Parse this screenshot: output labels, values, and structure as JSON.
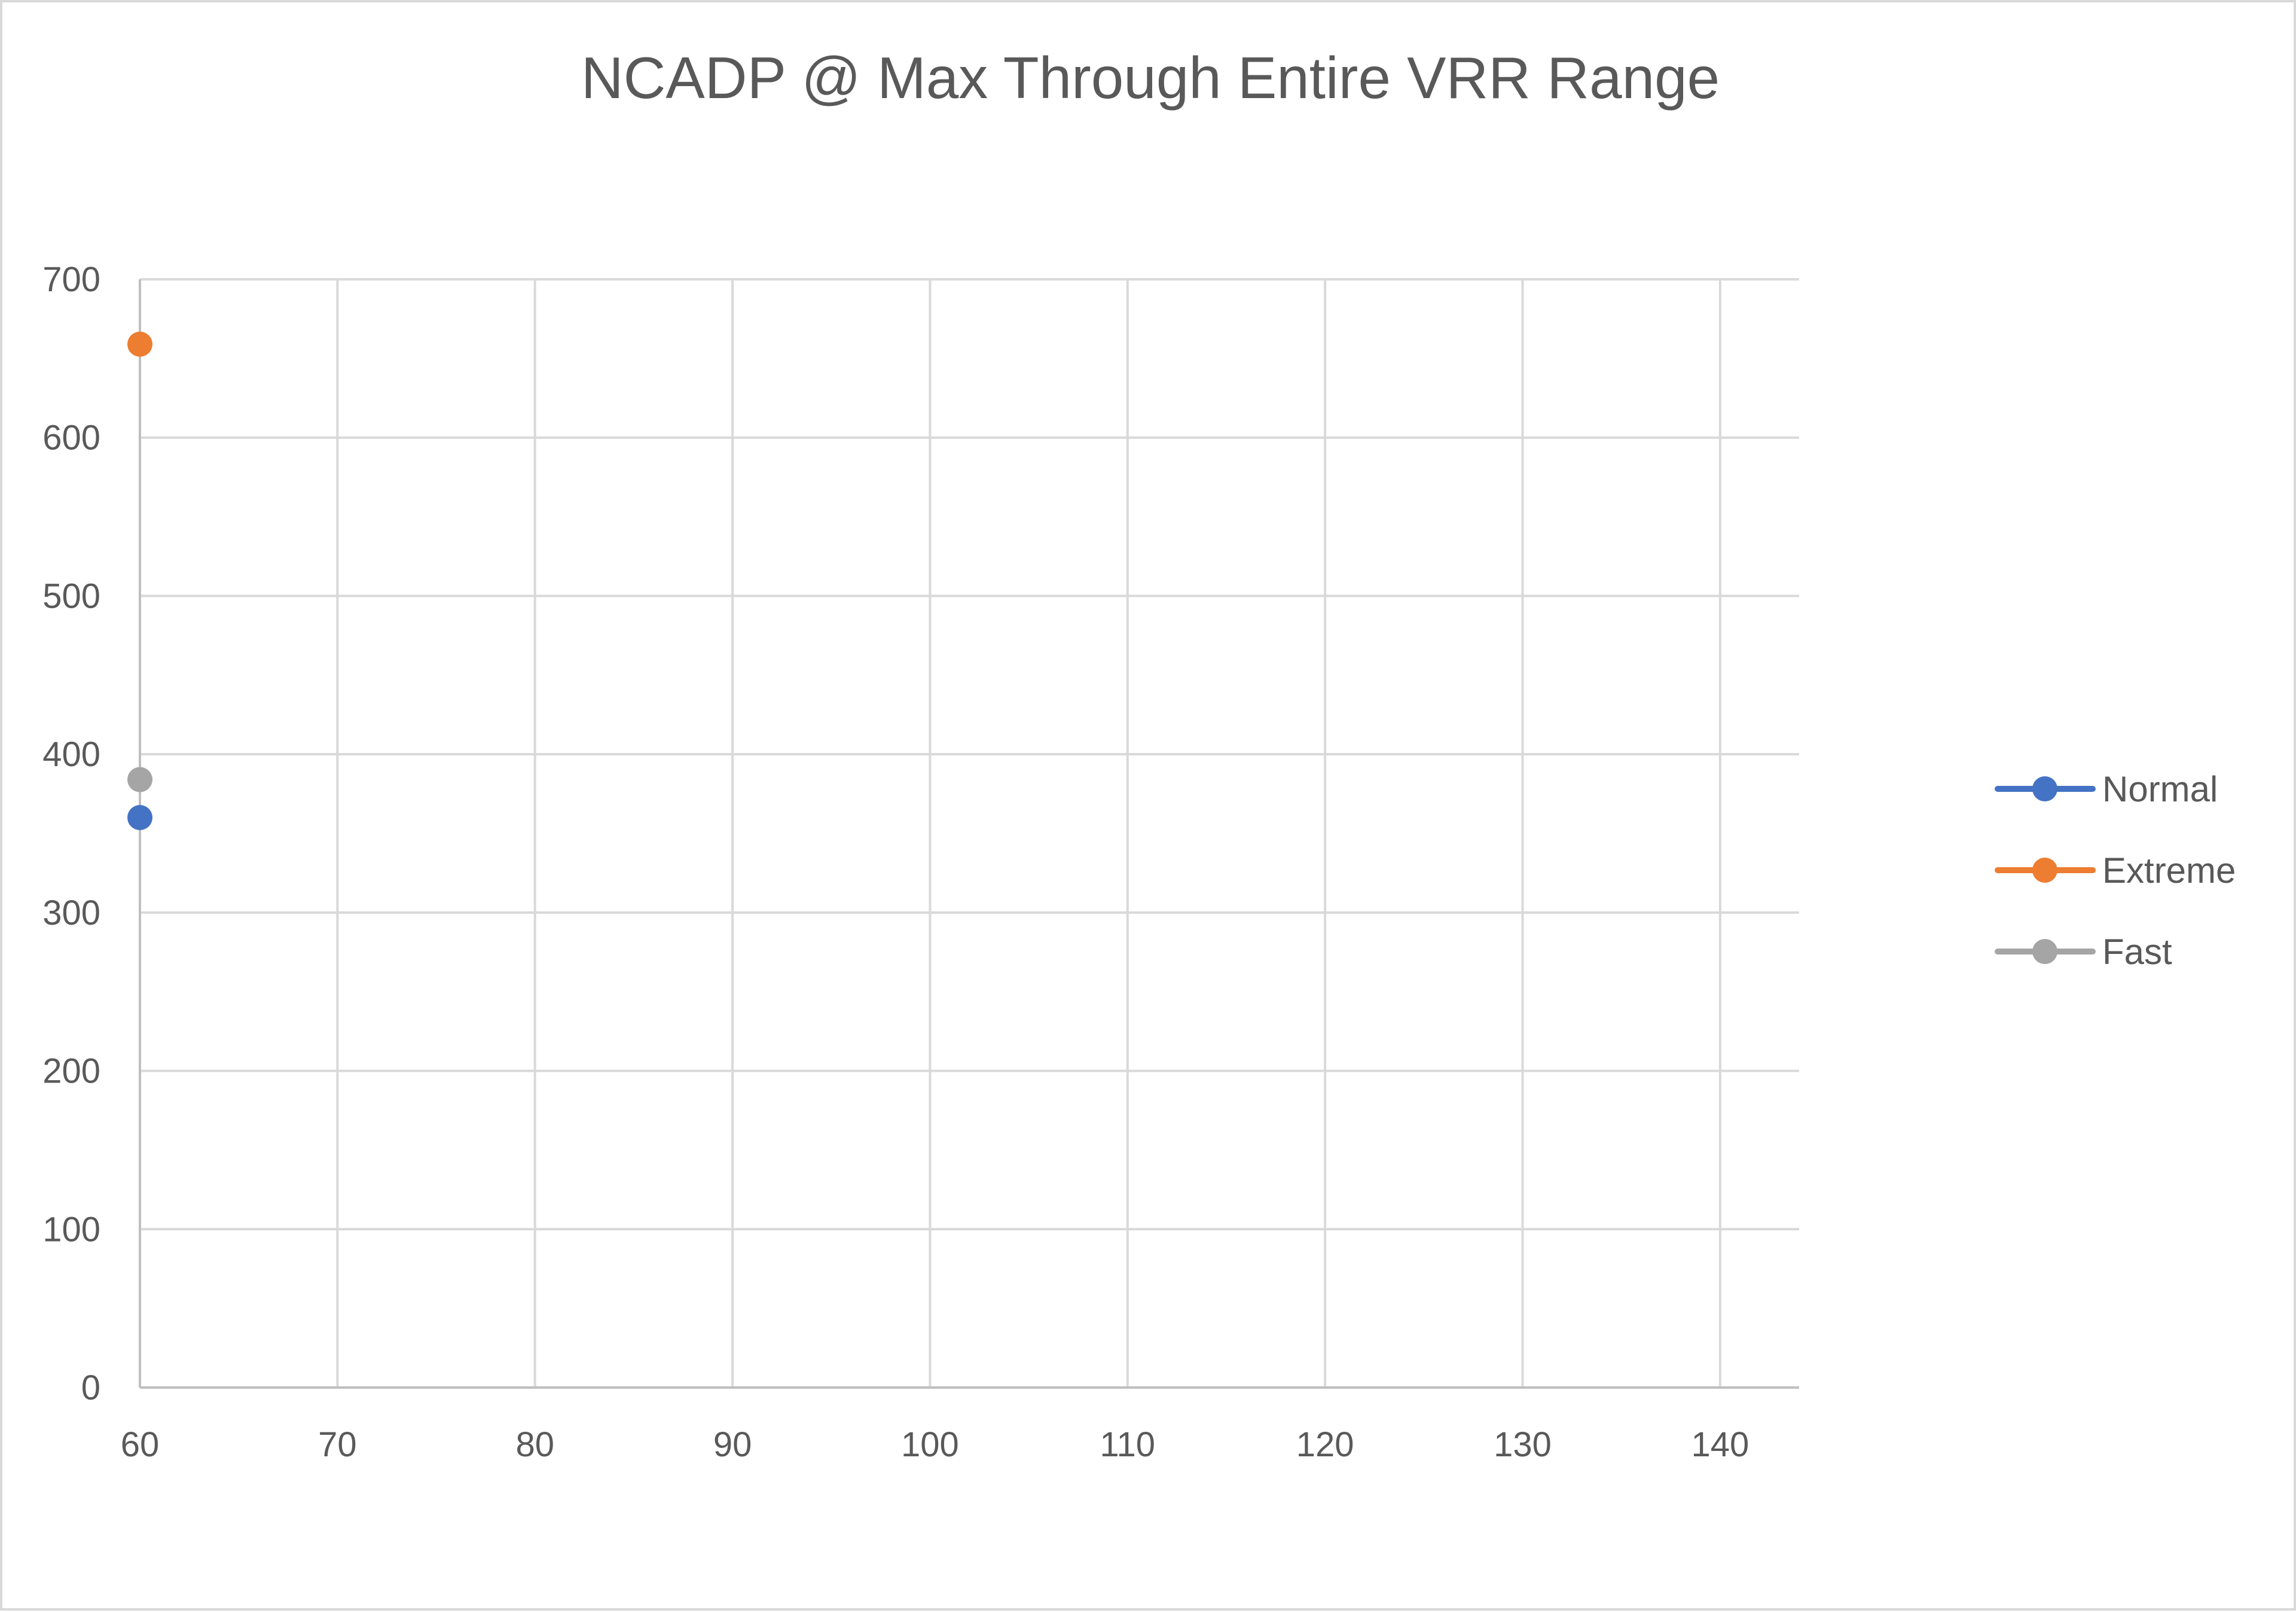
{
  "chart_data": {
    "type": "scatter",
    "title": "NCADP @ Max Through Entire VRR Range",
    "xlabel": "",
    "ylabel": "",
    "xlim": [
      60,
      144
    ],
    "ylim": [
      0,
      700
    ],
    "x_ticks": [
      60,
      70,
      80,
      90,
      100,
      110,
      120,
      130,
      140
    ],
    "y_ticks": [
      0,
      100,
      200,
      300,
      400,
      500,
      600,
      700
    ],
    "grid": true,
    "legend_position": "right",
    "series": [
      {
        "name": "Normal",
        "color": "#4472c4",
        "points": [
          {
            "x": 60,
            "y": 360
          }
        ]
      },
      {
        "name": "Extreme",
        "color": "#ed7d31",
        "points": [
          {
            "x": 60,
            "y": 659
          }
        ]
      },
      {
        "name": "Fast",
        "color": "#a5a5a5",
        "points": [
          {
            "x": 60,
            "y": 384
          }
        ]
      }
    ]
  }
}
